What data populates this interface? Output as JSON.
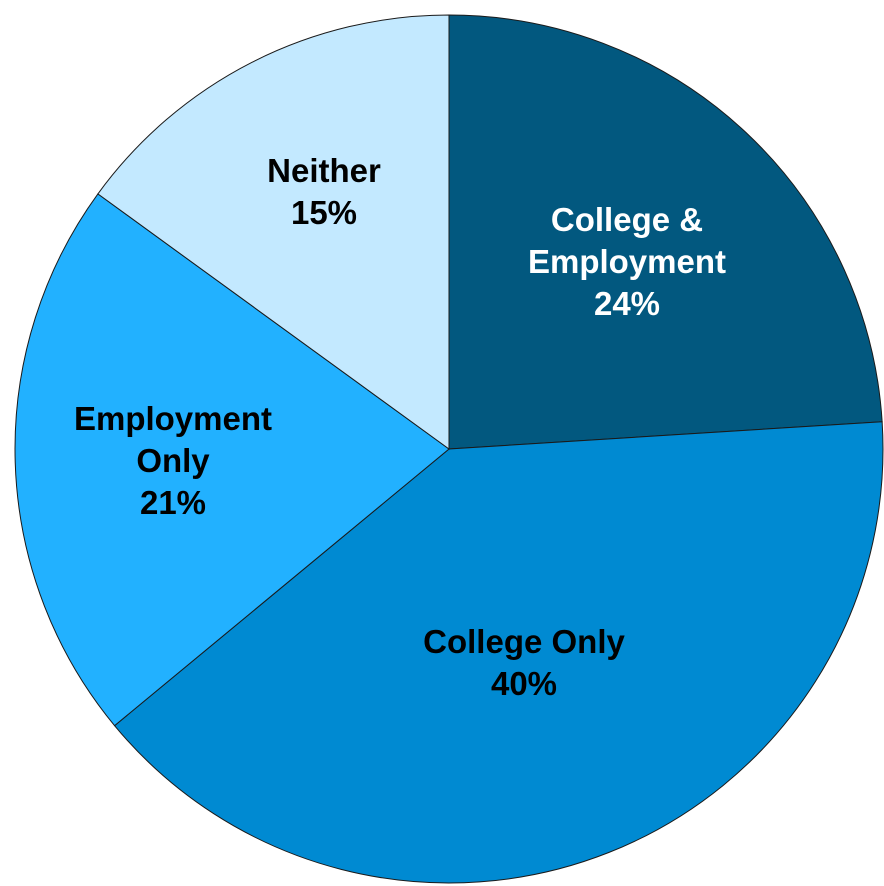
{
  "chart_data": {
    "type": "pie",
    "title": "",
    "slices": [
      {
        "label_lines": [
          "College &",
          "Employment"
        ],
        "percent_label": "24%",
        "value": 24,
        "color": "#02587F",
        "text_color": "#FFFFFF"
      },
      {
        "label_lines": [
          "College Only"
        ],
        "percent_label": "40%",
        "value": 40,
        "color": "#008AD2",
        "text_color": "#000000"
      },
      {
        "label_lines": [
          "Employment",
          "Only"
        ],
        "percent_label": "21%",
        "value": 21,
        "color": "#22B1FF",
        "text_color": "#000000"
      },
      {
        "label_lines": [
          "Neither"
        ],
        "percent_label": "15%",
        "value": 15,
        "color": "#C3E9FF",
        "text_color": "#000000"
      }
    ],
    "start_angle_deg": 0,
    "direction": "clockwise",
    "legend": "none"
  }
}
